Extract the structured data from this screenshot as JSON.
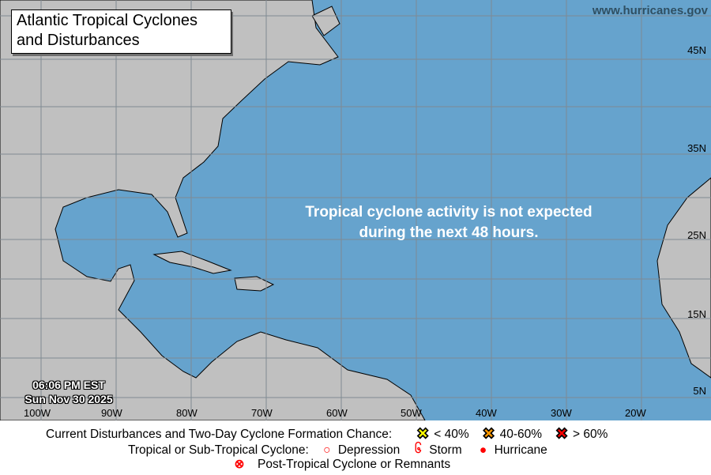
{
  "title": {
    "line1": "Atlantic Tropical Cyclones",
    "line2": "and Disturbances"
  },
  "site": "www.hurricanes.gov",
  "message": {
    "line1": "Tropical cyclone activity is not expected",
    "line2": "during the next 48 hours."
  },
  "timestamp": {
    "time": "06:06 PM EST",
    "date": "Sun Nov 30 2025"
  },
  "longitude_labels": [
    "100W",
    "90W",
    "80W",
    "70W",
    "60W",
    "50W",
    "40W",
    "30W",
    "20W"
  ],
  "latitude_labels": [
    "45N",
    "35N",
    "25N",
    "15N",
    "5N"
  ],
  "colors": {
    "ocean": "#66a3cd",
    "land": "#c0c0c0",
    "low": "#ffff00",
    "medium": "#ff9900",
    "high": "#ff0000",
    "cyclone": "#ff0000"
  },
  "legend": {
    "disturbances_label": "Current Disturbances and Two-Day Cyclone Formation Chance:",
    "low": "< 40%",
    "medium": "40-60%",
    "high": "> 60%",
    "cyclone_label": "Tropical or Sub-Tropical Cyclone:",
    "depression": "Depression",
    "storm": "Storm",
    "hurricane": "Hurricane",
    "post_tropical": "Post-Tropical Cyclone or Remnants"
  }
}
